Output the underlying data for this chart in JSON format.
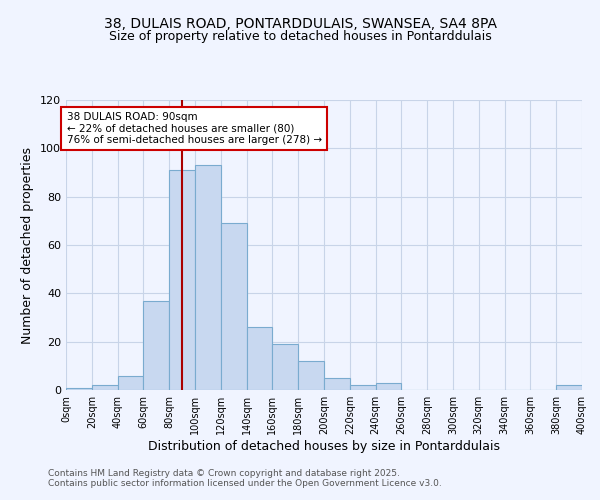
{
  "title1": "38, DULAIS ROAD, PONTARDDULAIS, SWANSEA, SA4 8PA",
  "title2": "Size of property relative to detached houses in Pontarddulais",
  "xlabel": "Distribution of detached houses by size in Pontarddulais",
  "ylabel": "Number of detached properties",
  "bin_edges": [
    0,
    20,
    40,
    60,
    80,
    100,
    120,
    140,
    160,
    180,
    200,
    220,
    240,
    260,
    280,
    300,
    320,
    340,
    360,
    380,
    400
  ],
  "counts": [
    1,
    2,
    6,
    37,
    91,
    93,
    69,
    26,
    19,
    12,
    5,
    2,
    3,
    0,
    0,
    0,
    0,
    0,
    0,
    2
  ],
  "bar_color": "#c8d8f0",
  "bar_edgecolor": "#7aabcf",
  "property_size": 90,
  "vline_color": "#aa0000",
  "annotation_line1": "38 DULAIS ROAD: 90sqm",
  "annotation_line2": "← 22% of detached houses are smaller (80)",
  "annotation_line3": "76% of semi-detached houses are larger (278) →",
  "annotation_box_edgecolor": "#cc0000",
  "annotation_box_facecolor": "#ffffff",
  "ylim": [
    0,
    120
  ],
  "yticks": [
    0,
    20,
    40,
    60,
    80,
    100,
    120
  ],
  "background_color": "#f0f4ff",
  "grid_color": "#c8d4e8",
  "footer1": "Contains HM Land Registry data © Crown copyright and database right 2025.",
  "footer2": "Contains public sector information licensed under the Open Government Licence v3.0."
}
